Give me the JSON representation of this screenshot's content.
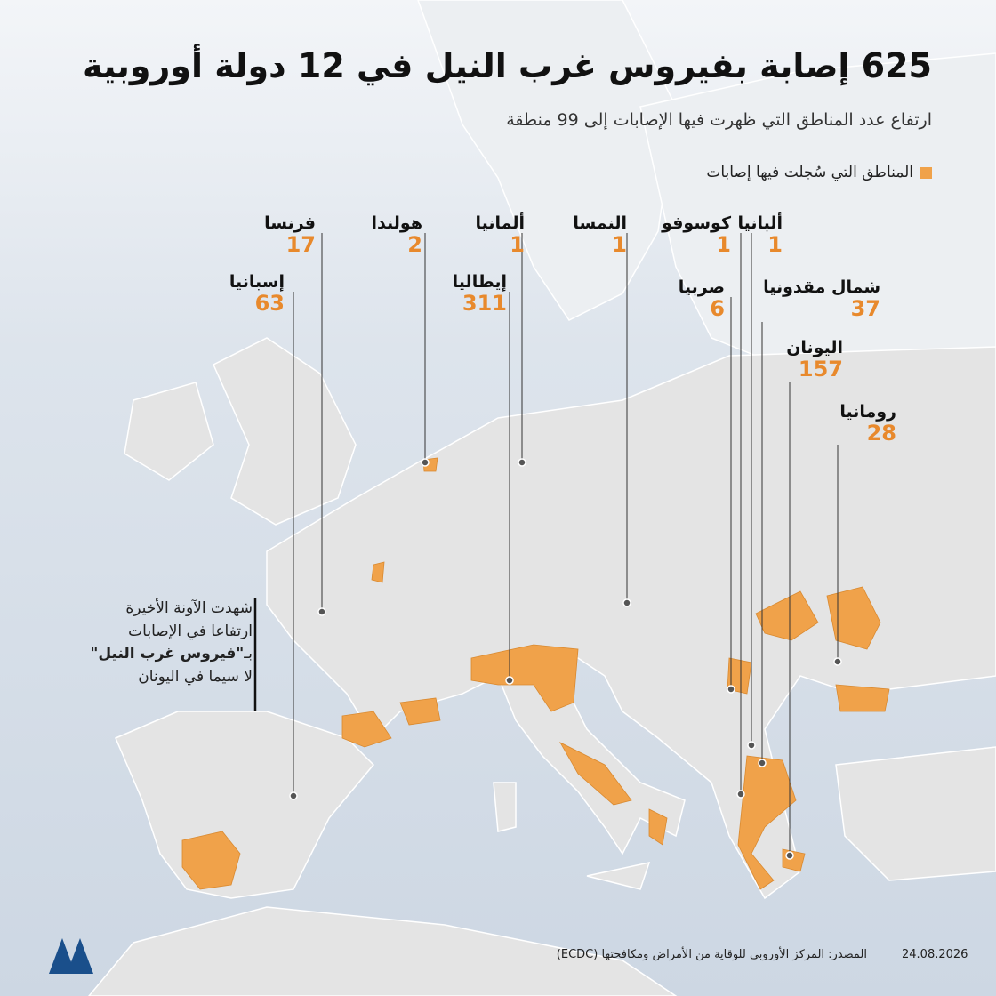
{
  "header": {
    "title": "625 إصابة بفيروس غرب النيل في 12 دولة أوروبية",
    "subtitle": "ارتفاع عدد المناطق التي ظهرت فيها الإصابات إلى 99 منطقة"
  },
  "legend": {
    "label": "المناطق التي سُجلت فيها إصابات"
  },
  "countries": [
    {
      "name": "فرنسا",
      "count": "17"
    },
    {
      "name": "هولندا",
      "count": "2"
    },
    {
      "name": "ألمانيا",
      "count": "1"
    },
    {
      "name": "النمسا",
      "count": "1"
    },
    {
      "name": "كوسوفو",
      "count": "1"
    },
    {
      "name": "ألبانيا",
      "count": "1"
    },
    {
      "name": "إسبانيا",
      "count": "63"
    },
    {
      "name": "إيطاليا",
      "count": "311"
    },
    {
      "name": "صربيا",
      "count": "6"
    },
    {
      "name": "شمال مقدونيا",
      "count": "37"
    },
    {
      "name": "اليونان",
      "count": "157"
    },
    {
      "name": "رومانيا",
      "count": "28"
    }
  ],
  "note": {
    "lines": [
      [
        "شهدت الآونة الأخيرة"
      ],
      [
        "ارتفاعا في الإصابات"
      ],
      [
        "بـ",
        "\"فيروس غرب النيل\""
      ],
      [
        "لا سيما في اليونان"
      ]
    ]
  },
  "footer": {
    "source": "المصدر: المركز الأوروبي للوقاية من الأمراض ومكافحتها (ECDC)",
    "date": "24.08.2026"
  }
}
